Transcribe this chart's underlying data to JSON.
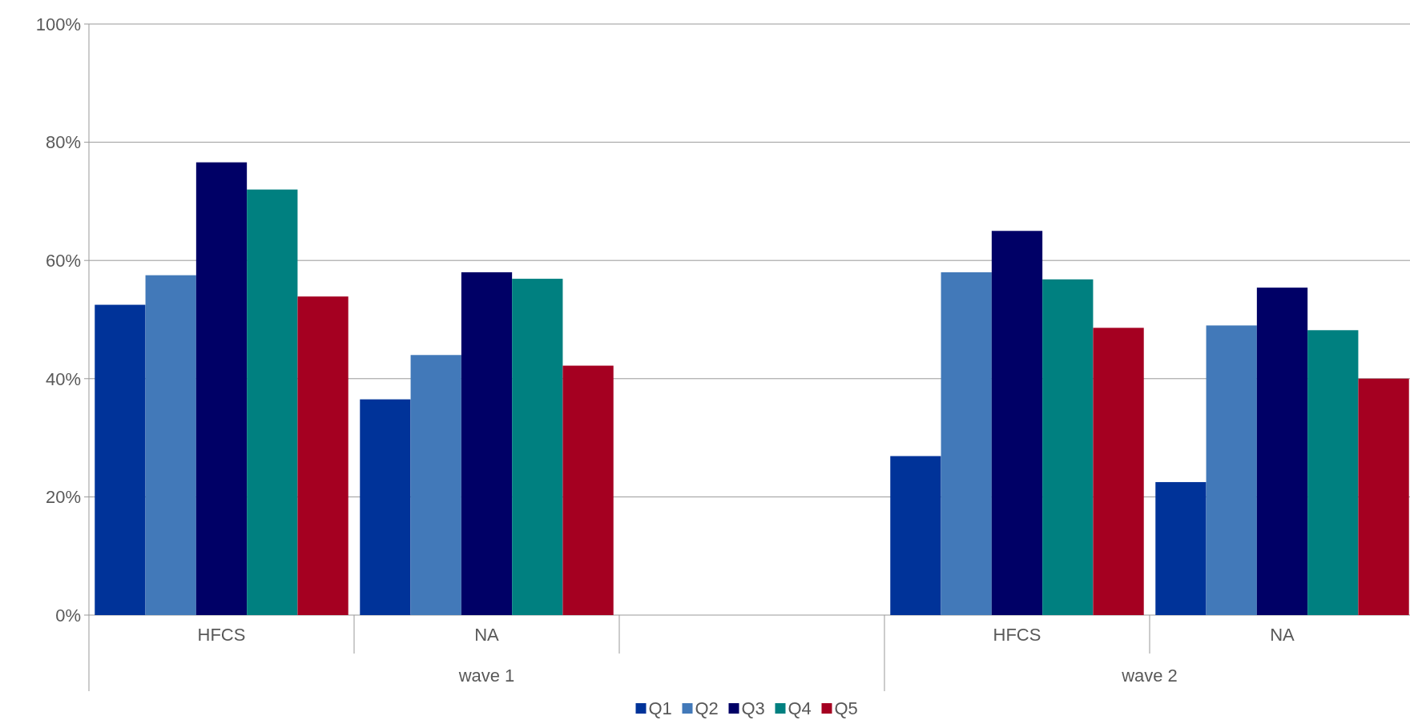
{
  "chart_data": {
    "type": "bar",
    "categories": [
      "HFCS",
      "NA",
      null,
      "HFCS",
      "NA"
    ],
    "series": [
      {
        "name": "Q1",
        "color": "#003399",
        "values": [
          52.5,
          36.5,
          null,
          26.9,
          22.5
        ]
      },
      {
        "name": "Q2",
        "color": "#4279b9",
        "values": [
          57.5,
          44.0,
          null,
          58.0,
          49.0
        ]
      },
      {
        "name": "Q3",
        "color": "#000066",
        "values": [
          76.6,
          58.0,
          null,
          65.0,
          55.4
        ]
      },
      {
        "name": "Q4",
        "color": "#008080",
        "values": [
          72.0,
          56.9,
          null,
          56.8,
          48.2
        ]
      },
      {
        "name": "Q5",
        "color": "#a50021",
        "values": [
          53.9,
          42.2,
          null,
          48.6,
          40.0
        ]
      }
    ],
    "ylim": [
      0,
      100
    ],
    "yticks": [
      {
        "value": 0,
        "label": "0%"
      },
      {
        "value": 20,
        "label": "20%"
      },
      {
        "value": 40,
        "label": "40%"
      },
      {
        "value": 60,
        "label": "60%"
      },
      {
        "value": 80,
        "label": "80%"
      },
      {
        "value": 100,
        "label": "100%"
      }
    ],
    "grid": "y",
    "legend": "bottom",
    "annotations": [
      "wave 1",
      "wave 2"
    ]
  }
}
